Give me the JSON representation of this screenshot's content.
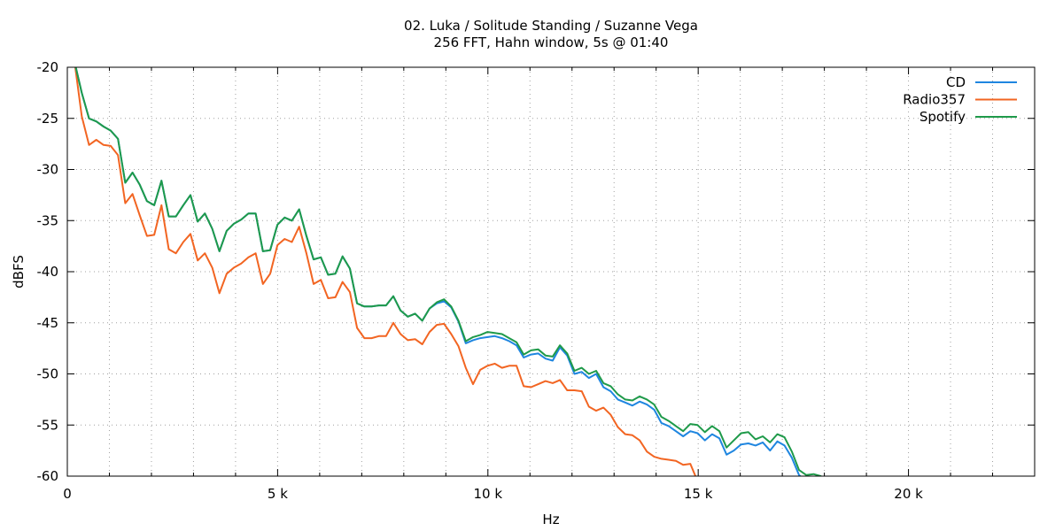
{
  "chart_data": {
    "type": "line",
    "title": "02. Luka / Solitude Standing / Suzanne Vega",
    "subtitle": "256 FFT, Hahn window, 5s @ 01:40",
    "xlabel": "Hz",
    "ylabel": "dBFS",
    "xlim": [
      0,
      23000
    ],
    "ylim": [
      -60,
      -20
    ],
    "x_ticks": [
      {
        "value": 0,
        "label": "0"
      },
      {
        "value": 5000,
        "label": "5 k"
      },
      {
        "value": 10000,
        "label": "10 k"
      },
      {
        "value": 15000,
        "label": "15 k"
      },
      {
        "value": 20000,
        "label": "20 k"
      }
    ],
    "y_ticks": [
      {
        "value": -20,
        "label": "-20"
      },
      {
        "value": -25,
        "label": "-25"
      },
      {
        "value": -30,
        "label": "-30"
      },
      {
        "value": -35,
        "label": "-35"
      },
      {
        "value": -40,
        "label": "-40"
      },
      {
        "value": -45,
        "label": "-45"
      },
      {
        "value": -50,
        "label": "-50"
      },
      {
        "value": -55,
        "label": "-55"
      },
      {
        "value": -60,
        "label": "-60"
      }
    ],
    "minor_x_step": 1000,
    "grid": true,
    "legend_position": "top-right",
    "series": [
      {
        "name": "CD",
        "color": "#1f86e0",
        "x": [
          172,
          344,
          516,
          689,
          861,
          1033,
          1205,
          1378,
          1550,
          1722,
          1894,
          2067,
          2239,
          2411,
          2583,
          2756,
          2928,
          3100,
          3272,
          3445,
          3617,
          3789,
          3961,
          4134,
          4306,
          4478,
          4651,
          4823,
          4995,
          5167,
          5340,
          5512,
          5684,
          5856,
          6029,
          6201,
          6373,
          6545,
          6718,
          6890,
          7062,
          7234,
          7407,
          7579,
          7751,
          7923,
          8096,
          8268,
          8440,
          8613,
          8785,
          8957,
          9129,
          9302,
          9474,
          9646,
          9818,
          9991,
          10163,
          10335,
          10507,
          10680,
          10852,
          11024,
          11196,
          11369,
          11541,
          11713,
          11885,
          12058,
          12230,
          12402,
          12575,
          12747,
          12919,
          13091,
          13264,
          13436,
          13608,
          13780,
          13953,
          14125,
          14297,
          14469,
          14642,
          14814,
          14986,
          15158,
          15331,
          15503,
          15675,
          15847,
          16020,
          16192,
          16364,
          16537,
          16709,
          16881,
          17053,
          17226,
          17398,
          17570,
          17742,
          17915
        ],
        "y": [
          -19.5,
          -22.5,
          -25.0,
          -25.3,
          -25.8,
          -26.2,
          -27.0,
          -31.3,
          -30.3,
          -31.5,
          -33.1,
          -33.5,
          -31.1,
          -34.6,
          -34.6,
          -33.5,
          -32.5,
          -35.1,
          -34.3,
          -35.8,
          -38.0,
          -36.0,
          -35.3,
          -34.9,
          -34.3,
          -34.3,
          -38.0,
          -37.9,
          -35.4,
          -34.7,
          -35.0,
          -33.9,
          -36.5,
          -38.8,
          -38.6,
          -40.3,
          -40.2,
          -38.5,
          -39.7,
          -43.1,
          -43.4,
          -43.4,
          -43.3,
          -43.3,
          -42.4,
          -43.8,
          -44.4,
          -44.1,
          -44.8,
          -43.6,
          -43.1,
          -42.9,
          -43.5,
          -44.9,
          -47.0,
          -46.7,
          -46.5,
          -46.4,
          -46.3,
          -46.5,
          -46.8,
          -47.2,
          -48.4,
          -48.1,
          -48.0,
          -48.5,
          -48.7,
          -47.4,
          -48.2,
          -50.0,
          -49.8,
          -50.4,
          -50.0,
          -51.3,
          -51.7,
          -52.5,
          -52.8,
          -53.1,
          -52.7,
          -53.0,
          -53.5,
          -54.8,
          -55.1,
          -55.6,
          -56.1,
          -55.6,
          -55.8,
          -56.5,
          -55.9,
          -56.3,
          -57.9,
          -57.5,
          -56.9,
          -56.8,
          -57.0,
          -56.7,
          -57.5,
          -56.6,
          -57.0,
          -58.2,
          -59.9,
          -60.5,
          -60.3,
          -60.6
        ]
      },
      {
        "name": "Radio357",
        "color": "#f26522",
        "x": [
          172,
          344,
          516,
          689,
          861,
          1033,
          1205,
          1378,
          1550,
          1722,
          1894,
          2067,
          2239,
          2411,
          2583,
          2756,
          2928,
          3100,
          3272,
          3445,
          3617,
          3789,
          3961,
          4134,
          4306,
          4478,
          4651,
          4823,
          4995,
          5167,
          5340,
          5512,
          5684,
          5856,
          6029,
          6201,
          6373,
          6545,
          6718,
          6890,
          7062,
          7234,
          7407,
          7579,
          7751,
          7923,
          8096,
          8268,
          8440,
          8613,
          8785,
          8957,
          9129,
          9302,
          9474,
          9646,
          9818,
          9991,
          10163,
          10335,
          10507,
          10680,
          10852,
          11024,
          11196,
          11369,
          11541,
          11713,
          11885,
          12058,
          12230,
          12402,
          12575,
          12747,
          12919,
          13091,
          13264,
          13436,
          13608,
          13780,
          13953,
          14125,
          14297,
          14469,
          14642,
          14814,
          14986,
          15158
        ],
        "y": [
          -19.5,
          -24.8,
          -27.6,
          -27.1,
          -27.6,
          -27.7,
          -28.6,
          -33.3,
          -32.4,
          -34.5,
          -36.5,
          -36.4,
          -33.5,
          -37.8,
          -38.2,
          -37.1,
          -36.3,
          -38.9,
          -38.2,
          -39.6,
          -42.1,
          -40.2,
          -39.6,
          -39.2,
          -38.6,
          -38.2,
          -41.2,
          -40.2,
          -37.4,
          -36.8,
          -37.1,
          -35.6,
          -38.2,
          -41.2,
          -40.8,
          -42.6,
          -42.5,
          -41.0,
          -42.0,
          -45.5,
          -46.5,
          -46.5,
          -46.3,
          -46.3,
          -45.0,
          -46.1,
          -46.7,
          -46.6,
          -47.1,
          -45.9,
          -45.2,
          -45.1,
          -46.1,
          -47.3,
          -49.4,
          -51.0,
          -49.6,
          -49.2,
          -49.0,
          -49.4,
          -49.2,
          -49.2,
          -51.2,
          -51.3,
          -51.0,
          -50.7,
          -50.9,
          -50.6,
          -51.6,
          -51.6,
          -51.7,
          -53.2,
          -53.6,
          -53.3,
          -54.0,
          -55.2,
          -55.9,
          -56.0,
          -56.5,
          -57.6,
          -58.1,
          -58.3,
          -58.4,
          -58.5,
          -58.9,
          -58.8,
          -60.5,
          -60.2
        ]
      },
      {
        "name": "Spotify",
        "color": "#1f9a4a",
        "x": [
          172,
          344,
          516,
          689,
          861,
          1033,
          1205,
          1378,
          1550,
          1722,
          1894,
          2067,
          2239,
          2411,
          2583,
          2756,
          2928,
          3100,
          3272,
          3445,
          3617,
          3789,
          3961,
          4134,
          4306,
          4478,
          4651,
          4823,
          4995,
          5167,
          5340,
          5512,
          5684,
          5856,
          6029,
          6201,
          6373,
          6545,
          6718,
          6890,
          7062,
          7234,
          7407,
          7579,
          7751,
          7923,
          8096,
          8268,
          8440,
          8613,
          8785,
          8957,
          9129,
          9302,
          9474,
          9646,
          9818,
          9991,
          10163,
          10335,
          10507,
          10680,
          10852,
          11024,
          11196,
          11369,
          11541,
          11713,
          11885,
          12058,
          12230,
          12402,
          12575,
          12747,
          12919,
          13091,
          13264,
          13436,
          13608,
          13780,
          13953,
          14125,
          14297,
          14469,
          14642,
          14814,
          14986,
          15158,
          15331,
          15503,
          15675,
          15847,
          16020,
          16192,
          16364,
          16537,
          16709,
          16881,
          17053,
          17226,
          17398,
          17570,
          17742,
          17915
        ],
        "y": [
          -19.5,
          -22.5,
          -25.0,
          -25.3,
          -25.8,
          -26.2,
          -27.0,
          -31.3,
          -30.3,
          -31.5,
          -33.1,
          -33.5,
          -31.1,
          -34.6,
          -34.6,
          -33.5,
          -32.5,
          -35.1,
          -34.3,
          -35.8,
          -38.0,
          -36.0,
          -35.3,
          -34.9,
          -34.3,
          -34.3,
          -38.0,
          -37.9,
          -35.4,
          -34.7,
          -35.0,
          -33.9,
          -36.5,
          -38.8,
          -38.6,
          -40.3,
          -40.2,
          -38.5,
          -39.7,
          -43.1,
          -43.4,
          -43.4,
          -43.3,
          -43.3,
          -42.4,
          -43.8,
          -44.4,
          -44.1,
          -44.8,
          -43.6,
          -43.0,
          -42.7,
          -43.4,
          -44.8,
          -46.8,
          -46.4,
          -46.2,
          -45.9,
          -46.0,
          -46.1,
          -46.5,
          -46.9,
          -48.1,
          -47.7,
          -47.6,
          -48.2,
          -48.3,
          -47.2,
          -48.0,
          -49.7,
          -49.4,
          -50.0,
          -49.7,
          -50.9,
          -51.2,
          -52.0,
          -52.5,
          -52.6,
          -52.2,
          -52.5,
          -53.0,
          -54.2,
          -54.6,
          -55.1,
          -55.6,
          -54.9,
          -55.0,
          -55.7,
          -55.1,
          -55.6,
          -57.2,
          -56.5,
          -55.8,
          -55.7,
          -56.4,
          -56.1,
          -56.7,
          -55.9,
          -56.2,
          -57.6,
          -59.4,
          -59.9,
          -59.8,
          -60.0
        ]
      }
    ]
  }
}
